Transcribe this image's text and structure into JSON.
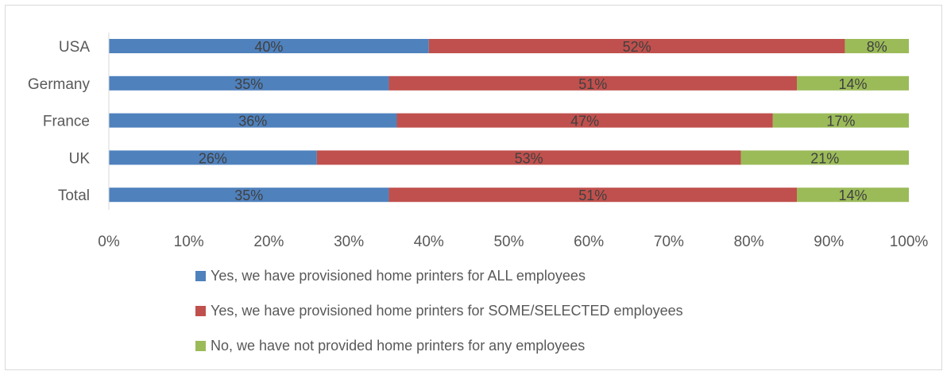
{
  "chart_data": {
    "type": "bar",
    "orientation": "horizontal",
    "stacked": true,
    "percent_stacked": true,
    "categories": [
      "USA",
      "Germany",
      "France",
      "UK",
      "Total"
    ],
    "series": [
      {
        "name": "Yes, we have provisioned home printers for ALL employees",
        "color": "#4f81bd",
        "values": [
          40,
          35,
          36,
          26,
          35
        ],
        "labels": [
          "40%",
          "35%",
          "36%",
          "26%",
          "35%"
        ]
      },
      {
        "name": "Yes, we have provisioned home printers for SOME/SELECTED employees",
        "color": "#c0504d",
        "values": [
          52,
          51,
          47,
          53,
          51
        ],
        "labels": [
          "52%",
          "51%",
          "47%",
          "53%",
          "51%"
        ]
      },
      {
        "name": "No, we have not provided home printers for any employees",
        "color": "#9bbb59",
        "values": [
          8,
          14,
          17,
          21,
          14
        ],
        "labels": [
          "8%",
          "14%",
          "17%",
          "21%",
          "14%"
        ]
      }
    ],
    "xlim": [
      0,
      100
    ],
    "xticks": [
      "0%",
      "10%",
      "20%",
      "30%",
      "40%",
      "50%",
      "60%",
      "70%",
      "80%",
      "90%",
      "100%"
    ],
    "grid": false,
    "legend_position": "bottom"
  }
}
